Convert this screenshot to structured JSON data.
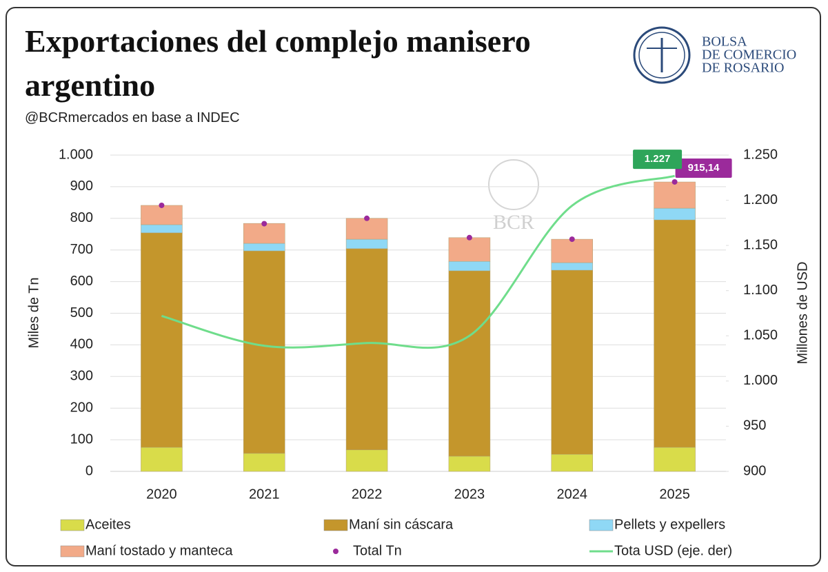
{
  "logo": [
    "BOLSA",
    "DE COMERCIO",
    "DE ROSARIO"
  ],
  "watermark": "BCR",
  "chart_data": {
    "type": "bar",
    "title": "Exportaciones del complejo manisero argentino",
    "subtitle": "@BCRmercados en base a INDEC",
    "ylabel": "Miles de Tn",
    "y2label": "Millones de USD",
    "stacked": true,
    "grid": true,
    "categories": [
      "2020",
      "2021",
      "2022",
      "2023",
      "2024",
      "2025"
    ],
    "ylim": [
      0,
      1000
    ],
    "yticks": [
      0,
      100,
      200,
      300,
      400,
      500,
      600,
      700,
      800,
      900,
      {
        "value": 1000,
        "label": "1.000"
      }
    ],
    "y2lim": [
      900,
      1250
    ],
    "y2ticks": [
      900,
      950,
      {
        "value": 1000,
        "label": "1.000"
      },
      {
        "value": 1050,
        "label": "1.050"
      },
      {
        "value": 1100,
        "label": "1.100"
      },
      {
        "value": 1150,
        "label": "1.150"
      },
      {
        "value": 1200,
        "label": "1.200"
      },
      {
        "value": 1250,
        "label": "1.250"
      }
    ],
    "series": [
      {
        "name": "Aceites",
        "type": "bar",
        "color": "#d9dc4a",
        "values": [
          76,
          57,
          68,
          48,
          54,
          76
        ]
      },
      {
        "name": "Maní sin cáscara",
        "type": "bar",
        "color": "#c4962c",
        "values": [
          678,
          640,
          636,
          586,
          582,
          719
        ]
      },
      {
        "name": "Pellets y expellers",
        "type": "bar",
        "color": "#8fd8f5",
        "values": [
          26,
          24,
          30,
          30,
          24,
          37
        ]
      },
      {
        "name": "Maní tostado y manteca",
        "type": "bar",
        "color": "#f2aa88",
        "values": [
          61,
          63,
          66,
          75,
          74,
          83
        ]
      },
      {
        "name": "Total Tn",
        "type": "scatter",
        "color": "#9b2a9b",
        "values": [
          841,
          783,
          800,
          739,
          734,
          915.14
        ],
        "value_labels": [
          null,
          null,
          null,
          null,
          null,
          "915,14"
        ]
      },
      {
        "name": "Tota USD (eje. der)",
        "type": "line",
        "axis": "y2",
        "color": "#6fdd8b",
        "values": [
          1072,
          1039,
          1042,
          1050,
          1194,
          1227
        ],
        "value_labels": [
          null,
          null,
          null,
          null,
          null,
          "1.227"
        ],
        "label_color": "#2ea55a"
      }
    ]
  }
}
